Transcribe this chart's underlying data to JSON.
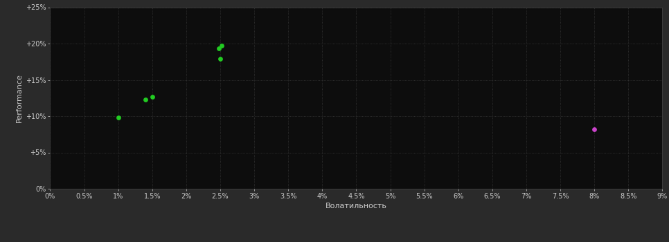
{
  "background_color": "#1a1a1a",
  "plot_bg_color": "#0d0d0d",
  "outer_bg_color": "#2a2a2a",
  "grid_color": "#3a3a3a",
  "text_color": "#cccccc",
  "xlabel": "Волатильность",
  "ylabel": "Performance",
  "xlim": [
    0.0,
    0.09
  ],
  "ylim": [
    0.0,
    0.25
  ],
  "xtick_vals": [
    0.0,
    0.005,
    0.01,
    0.015,
    0.02,
    0.025,
    0.03,
    0.035,
    0.04,
    0.045,
    0.05,
    0.055,
    0.06,
    0.065,
    0.07,
    0.075,
    0.08,
    0.085,
    0.09
  ],
  "xtick_labels": [
    "0%",
    "0.5%",
    "1%",
    "1.5%",
    "2%",
    "2.5%",
    "3%",
    "3.5%",
    "4%",
    "4.5%",
    "5%",
    "5.5%",
    "6%",
    "6.5%",
    "7%",
    "7.5%",
    "8%",
    "8.5%",
    "9%"
  ],
  "ytick_vals": [
    0.0,
    0.05,
    0.1,
    0.15,
    0.2,
    0.25
  ],
  "ytick_labels": [
    "0%",
    "+5%",
    "+10%",
    "+15%",
    "+20%",
    "+25%"
  ],
  "green_points": [
    [
      0.01,
      0.098
    ],
    [
      0.014,
      0.123
    ],
    [
      0.015,
      0.127
    ],
    [
      0.0248,
      0.193
    ],
    [
      0.0252,
      0.197
    ],
    [
      0.025,
      0.179
    ]
  ],
  "magenta_points": [
    [
      0.08,
      0.082
    ]
  ],
  "green_color": "#22cc22",
  "magenta_color": "#cc44cc",
  "point_size": 15
}
